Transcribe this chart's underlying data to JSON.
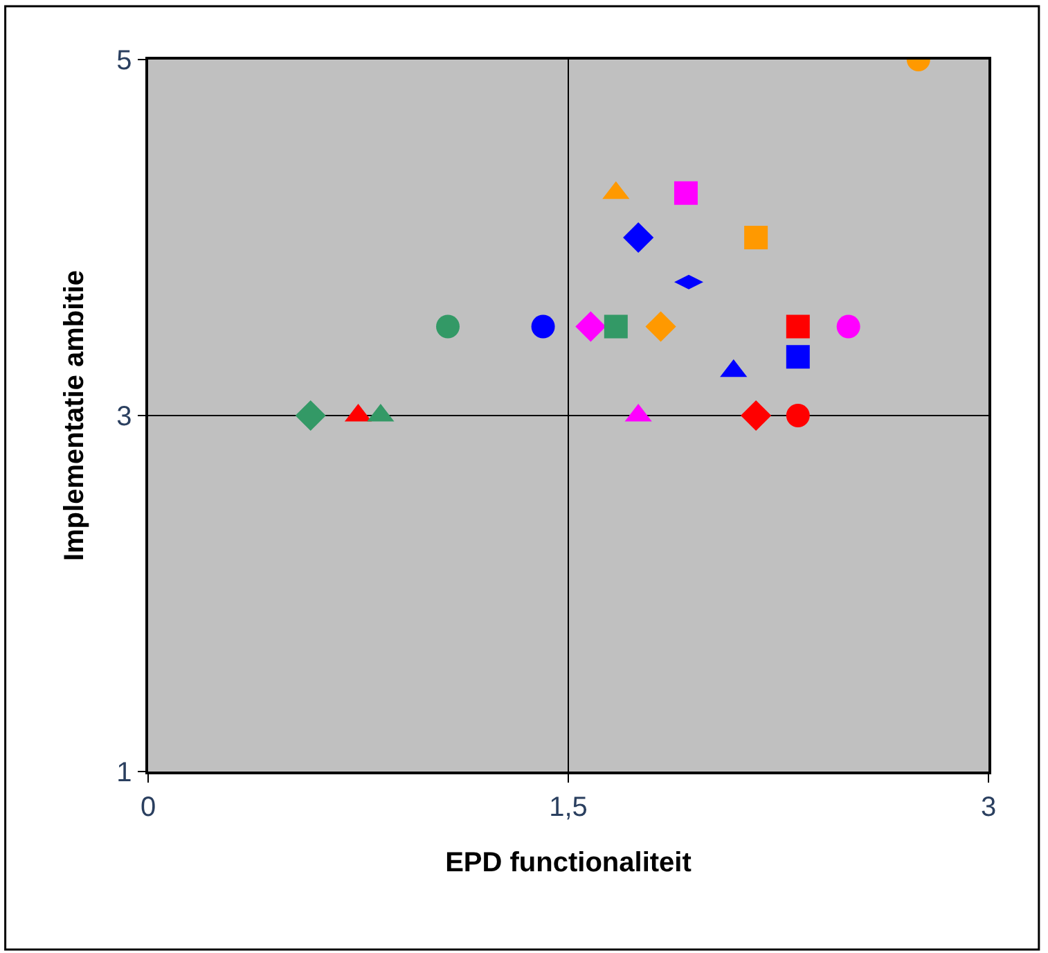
{
  "chart_data": {
    "type": "scatter",
    "xlabel": "EPD functionaliteit",
    "ylabel": "Implementatie ambitie",
    "xlim": [
      0,
      3
    ],
    "ylim": [
      1,
      5
    ],
    "xticks": [
      0,
      {
        "value": 1.5,
        "label": "1,5"
      },
      3
    ],
    "yticks": [
      1,
      3,
      5
    ],
    "grid": true,
    "series": [
      {
        "color": "#ff9900",
        "marker": "circle",
        "x": [
          2.75
        ],
        "values": [
          5
        ]
      },
      {
        "color": "#ff9900",
        "marker": "triangle",
        "x": [
          1.67
        ],
        "values": [
          4.25
        ]
      },
      {
        "color": "#ff00ff",
        "marker": "square",
        "x": [
          1.92
        ],
        "values": [
          4.25
        ]
      },
      {
        "color": "#ff9900",
        "marker": "square",
        "x": [
          2.17
        ],
        "values": [
          4.0
        ]
      },
      {
        "color": "#0000ff",
        "marker": "diamond",
        "x": [
          1.75
        ],
        "values": [
          4.0
        ]
      },
      {
        "color": "#0000ff",
        "x": [
          1.93
        ],
        "values": [
          3.75
        ]
      },
      {
        "color": "#339966",
        "marker": "circle",
        "x": [
          1.07
        ],
        "values": [
          3.5
        ]
      },
      {
        "color": "#0000ff",
        "marker": "circle",
        "x": [
          1.41
        ],
        "values": [
          3.5
        ]
      },
      {
        "color": "#ff00ff",
        "marker": "diamond",
        "x": [
          1.58
        ],
        "values": [
          3.5
        ]
      },
      {
        "color": "#339966",
        "marker": "square",
        "x": [
          1.67
        ],
        "values": [
          3.5
        ]
      },
      {
        "color": "#ff9900",
        "marker": "diamond",
        "x": [
          1.83
        ],
        "values": [
          3.5
        ]
      },
      {
        "color": "#ff0000",
        "marker": "square",
        "x": [
          2.32
        ],
        "values": [
          3.5
        ]
      },
      {
        "color": "#ff00ff",
        "marker": "circle",
        "x": [
          2.5
        ],
        "values": [
          3.5
        ]
      },
      {
        "color": "#0000ff",
        "marker": "square",
        "x": [
          2.32
        ],
        "values": [
          3.33
        ]
      },
      {
        "color": "#0000ff",
        "marker": "triangle",
        "x": [
          2.09
        ],
        "values": [
          3.25
        ]
      },
      {
        "color": "#339966",
        "marker": "diamond",
        "x": [
          0.58
        ],
        "values": [
          3
        ]
      },
      {
        "color": "#ff0000",
        "marker": "triangle",
        "x": [
          0.75
        ],
        "values": [
          3
        ]
      },
      {
        "color": "#339966",
        "marker": "triangle",
        "x": [
          0.83
        ],
        "values": [
          3
        ]
      },
      {
        "color": "#ff00ff",
        "marker": "triangle",
        "x": [
          1.75
        ],
        "values": [
          3
        ]
      },
      {
        "color": "#ff0000",
        "marker": "diamond",
        "x": [
          2.17
        ],
        "values": [
          3
        ]
      },
      {
        "color": "#ff0000",
        "marker": "circle",
        "x": [
          2.32
        ],
        "values": [
          3
        ]
      }
    ]
  }
}
